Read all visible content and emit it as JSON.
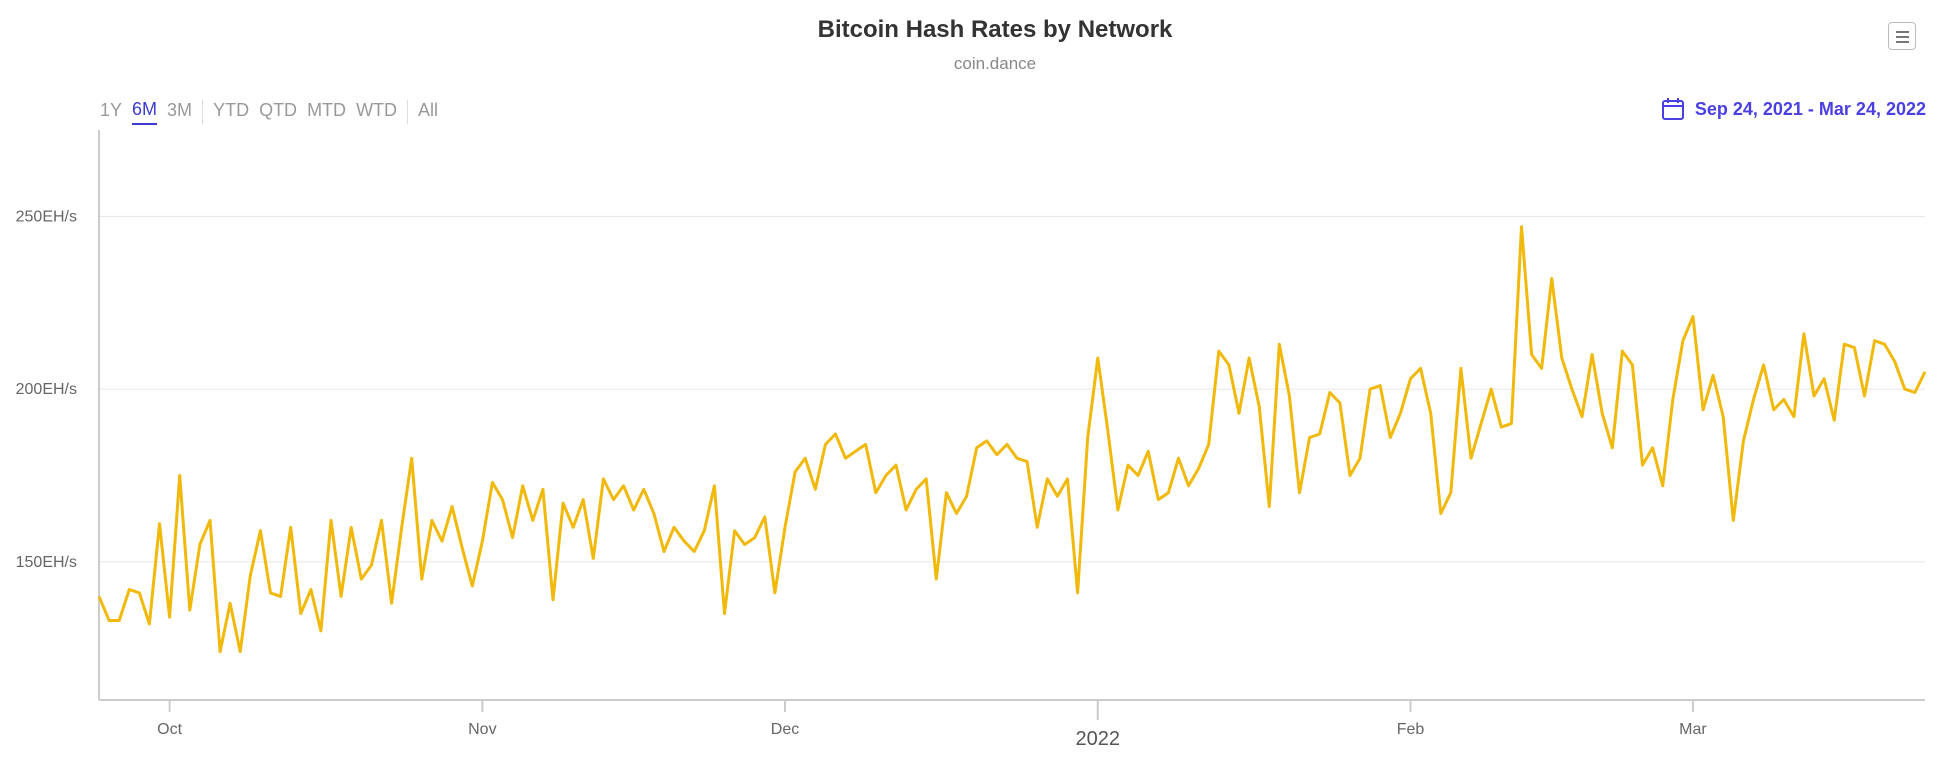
{
  "header": {
    "title": "Bitcoin Hash Rates by Network",
    "subtitle": "coin.dance",
    "menu_icon": "hamburger-menu-icon"
  },
  "range_selector": {
    "buttons": [
      {
        "label": "1Y",
        "active": false
      },
      {
        "label": "6M",
        "active": true
      },
      {
        "label": "3M",
        "active": false
      },
      {
        "label": "YTD",
        "active": false
      },
      {
        "label": "QTD",
        "active": false
      },
      {
        "label": "MTD",
        "active": false
      },
      {
        "label": "WTD",
        "active": false
      },
      {
        "label": "All",
        "active": false
      }
    ],
    "date_range": "Sep 24, 2021 - Mar 24, 2022",
    "calendar_icon": "calendar-icon",
    "accent_color": "#4a3fe0"
  },
  "chart_data": {
    "type": "line",
    "title": "Bitcoin Hash Rates by Network",
    "subtitle": "coin.dance",
    "xlabel": "",
    "ylabel": "",
    "x_start": "2021-09-24",
    "x_end": "2022-03-24",
    "ylim": [
      110,
      275
    ],
    "y_ticks": [
      {
        "value": 150,
        "label": "150EH/s"
      },
      {
        "value": 200,
        "label": "200EH/s"
      },
      {
        "value": 250,
        "label": "250EH/s"
      }
    ],
    "x_ticks": [
      {
        "date": "2021-10-01",
        "label": "Oct"
      },
      {
        "date": "2021-11-01",
        "label": "Nov"
      },
      {
        "date": "2021-12-01",
        "label": "Dec"
      },
      {
        "date": "2022-01-01",
        "label": "2022",
        "major": true
      },
      {
        "date": "2022-02-01",
        "label": "Feb"
      },
      {
        "date": "2022-03-01",
        "label": "Mar"
      }
    ],
    "grid": true,
    "legend": "none",
    "series": [
      {
        "color": "#f0b90b",
        "points": [
          [
            "2021-09-24",
            140
          ],
          [
            "2021-09-25",
            133
          ],
          [
            "2021-09-26",
            133
          ],
          [
            "2021-09-27",
            142
          ],
          [
            "2021-09-28",
            141
          ],
          [
            "2021-09-29",
            132
          ],
          [
            "2021-09-30",
            161
          ],
          [
            "2021-10-01",
            134
          ],
          [
            "2021-10-02",
            175
          ],
          [
            "2021-10-03",
            136
          ],
          [
            "2021-10-04",
            155
          ],
          [
            "2021-10-05",
            162
          ],
          [
            "2021-10-06",
            124
          ],
          [
            "2021-10-07",
            138
          ],
          [
            "2021-10-08",
            124
          ],
          [
            "2021-10-09",
            146
          ],
          [
            "2021-10-10",
            159
          ],
          [
            "2021-10-11",
            141
          ],
          [
            "2021-10-12",
            140
          ],
          [
            "2021-10-13",
            160
          ],
          [
            "2021-10-14",
            135
          ],
          [
            "2021-10-15",
            142
          ],
          [
            "2021-10-16",
            130
          ],
          [
            "2021-10-17",
            162
          ],
          [
            "2021-10-18",
            140
          ],
          [
            "2021-10-19",
            160
          ],
          [
            "2021-10-20",
            145
          ],
          [
            "2021-10-21",
            149
          ],
          [
            "2021-10-22",
            162
          ],
          [
            "2021-10-23",
            138
          ],
          [
            "2021-10-24",
            160
          ],
          [
            "2021-10-25",
            180
          ],
          [
            "2021-10-26",
            145
          ],
          [
            "2021-10-27",
            162
          ],
          [
            "2021-10-28",
            156
          ],
          [
            "2021-10-29",
            166
          ],
          [
            "2021-10-30",
            154
          ],
          [
            "2021-10-31",
            143
          ],
          [
            "2021-11-01",
            156
          ],
          [
            "2021-11-02",
            173
          ],
          [
            "2021-11-03",
            168
          ],
          [
            "2021-11-04",
            157
          ],
          [
            "2021-11-05",
            172
          ],
          [
            "2021-11-06",
            162
          ],
          [
            "2021-11-07",
            171
          ],
          [
            "2021-11-08",
            139
          ],
          [
            "2021-11-09",
            167
          ],
          [
            "2021-11-10",
            160
          ],
          [
            "2021-11-11",
            168
          ],
          [
            "2021-11-12",
            151
          ],
          [
            "2021-11-13",
            174
          ],
          [
            "2021-11-14",
            168
          ],
          [
            "2021-11-15",
            172
          ],
          [
            "2021-11-16",
            165
          ],
          [
            "2021-11-17",
            171
          ],
          [
            "2021-11-18",
            164
          ],
          [
            "2021-11-19",
            153
          ],
          [
            "2021-11-20",
            160
          ],
          [
            "2021-11-21",
            156
          ],
          [
            "2021-11-22",
            153
          ],
          [
            "2021-11-23",
            159
          ],
          [
            "2021-11-24",
            172
          ],
          [
            "2021-11-25",
            135
          ],
          [
            "2021-11-26",
            159
          ],
          [
            "2021-11-27",
            155
          ],
          [
            "2021-11-28",
            157
          ],
          [
            "2021-11-29",
            163
          ],
          [
            "2021-11-30",
            141
          ],
          [
            "2021-12-01",
            160
          ],
          [
            "2021-12-02",
            176
          ],
          [
            "2021-12-03",
            180
          ],
          [
            "2021-12-04",
            171
          ],
          [
            "2021-12-05",
            184
          ],
          [
            "2021-12-06",
            187
          ],
          [
            "2021-12-07",
            180
          ],
          [
            "2021-12-08",
            182
          ],
          [
            "2021-12-09",
            184
          ],
          [
            "2021-12-10",
            170
          ],
          [
            "2021-12-11",
            175
          ],
          [
            "2021-12-12",
            178
          ],
          [
            "2021-12-13",
            165
          ],
          [
            "2021-12-14",
            171
          ],
          [
            "2021-12-15",
            174
          ],
          [
            "2021-12-16",
            145
          ],
          [
            "2021-12-17",
            170
          ],
          [
            "2021-12-18",
            164
          ],
          [
            "2021-12-19",
            169
          ],
          [
            "2021-12-20",
            183
          ],
          [
            "2021-12-21",
            185
          ],
          [
            "2021-12-22",
            181
          ],
          [
            "2021-12-23",
            184
          ],
          [
            "2021-12-24",
            180
          ],
          [
            "2021-12-25",
            179
          ],
          [
            "2021-12-26",
            160
          ],
          [
            "2021-12-27",
            174
          ],
          [
            "2021-12-28",
            169
          ],
          [
            "2021-12-29",
            174
          ],
          [
            "2021-12-30",
            141
          ],
          [
            "2021-12-31",
            186
          ],
          [
            "2022-01-01",
            209
          ],
          [
            "2022-01-02",
            188
          ],
          [
            "2022-01-03",
            165
          ],
          [
            "2022-01-04",
            178
          ],
          [
            "2022-01-05",
            175
          ],
          [
            "2022-01-06",
            182
          ],
          [
            "2022-01-07",
            168
          ],
          [
            "2022-01-08",
            170
          ],
          [
            "2022-01-09",
            180
          ],
          [
            "2022-01-10",
            172
          ],
          [
            "2022-01-11",
            177
          ],
          [
            "2022-01-12",
            184
          ],
          [
            "2022-01-13",
            211
          ],
          [
            "2022-01-14",
            207
          ],
          [
            "2022-01-15",
            193
          ],
          [
            "2022-01-16",
            209
          ],
          [
            "2022-01-17",
            195
          ],
          [
            "2022-01-18",
            166
          ],
          [
            "2022-01-19",
            213
          ],
          [
            "2022-01-20",
            198
          ],
          [
            "2022-01-21",
            170
          ],
          [
            "2022-01-22",
            186
          ],
          [
            "2022-01-23",
            187
          ],
          [
            "2022-01-24",
            199
          ],
          [
            "2022-01-25",
            196
          ],
          [
            "2022-01-26",
            175
          ],
          [
            "2022-01-27",
            180
          ],
          [
            "2022-01-28",
            200
          ],
          [
            "2022-01-29",
            201
          ],
          [
            "2022-01-30",
            186
          ],
          [
            "2022-01-31",
            193
          ],
          [
            "2022-02-01",
            203
          ],
          [
            "2022-02-02",
            206
          ],
          [
            "2022-02-03",
            193
          ],
          [
            "2022-02-04",
            164
          ],
          [
            "2022-02-05",
            170
          ],
          [
            "2022-02-06",
            206
          ],
          [
            "2022-02-07",
            180
          ],
          [
            "2022-02-08",
            190
          ],
          [
            "2022-02-09",
            200
          ],
          [
            "2022-02-10",
            189
          ],
          [
            "2022-02-11",
            190
          ],
          [
            "2022-02-12",
            247
          ],
          [
            "2022-02-13",
            210
          ],
          [
            "2022-02-14",
            206
          ],
          [
            "2022-02-15",
            232
          ],
          [
            "2022-02-16",
            209
          ],
          [
            "2022-02-17",
            200
          ],
          [
            "2022-02-18",
            192
          ],
          [
            "2022-02-19",
            210
          ],
          [
            "2022-02-20",
            193
          ],
          [
            "2022-02-21",
            183
          ],
          [
            "2022-02-22",
            211
          ],
          [
            "2022-02-23",
            207
          ],
          [
            "2022-02-24",
            178
          ],
          [
            "2022-02-25",
            183
          ],
          [
            "2022-02-26",
            172
          ],
          [
            "2022-02-27",
            197
          ],
          [
            "2022-02-28",
            214
          ],
          [
            "2022-03-01",
            221
          ],
          [
            "2022-03-02",
            194
          ],
          [
            "2022-03-03",
            204
          ],
          [
            "2022-03-04",
            192
          ],
          [
            "2022-03-05",
            162
          ],
          [
            "2022-03-06",
            185
          ],
          [
            "2022-03-07",
            197
          ],
          [
            "2022-03-08",
            207
          ],
          [
            "2022-03-09",
            194
          ],
          [
            "2022-03-10",
            197
          ],
          [
            "2022-03-11",
            192
          ],
          [
            "2022-03-12",
            216
          ],
          [
            "2022-03-13",
            198
          ],
          [
            "2022-03-14",
            203
          ],
          [
            "2022-03-15",
            191
          ],
          [
            "2022-03-16",
            213
          ],
          [
            "2022-03-17",
            212
          ],
          [
            "2022-03-18",
            198
          ],
          [
            "2022-03-19",
            214
          ],
          [
            "2022-03-20",
            213
          ],
          [
            "2022-03-21",
            208
          ],
          [
            "2022-03-22",
            200
          ],
          [
            "2022-03-23",
            199
          ],
          [
            "2022-03-24",
            205
          ]
        ]
      }
    ]
  },
  "colors": {
    "line": "#f0b90b",
    "grid": "#e6e6e6",
    "axis": "#cccccc",
    "accent": "#4a3fe0"
  }
}
